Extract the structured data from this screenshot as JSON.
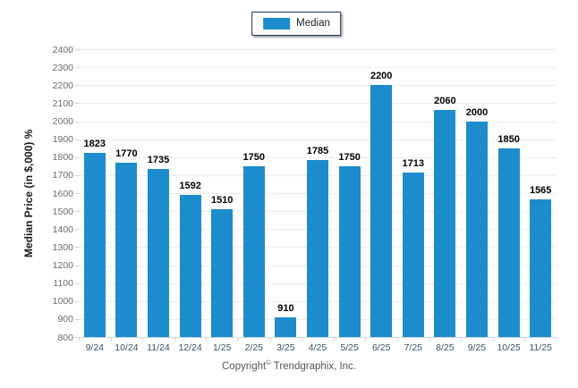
{
  "legend": {
    "swatch_color": "#1C8CCD",
    "border_color": "#17375E"
  },
  "footer": {
    "prefix": "Copyright",
    "symbol": "©",
    "suffix": "Trendgraphix, Inc."
  },
  "chart_data": {
    "type": "bar",
    "title": "",
    "xlabel": "",
    "ylabel": "Median Price (in $,000) %",
    "categories": [
      "9/24",
      "10/24",
      "11/24",
      "12/24",
      "1/25",
      "2/25",
      "3/25",
      "4/25",
      "5/25",
      "6/25",
      "7/25",
      "8/25",
      "9/25",
      "10/25",
      "11/25"
    ],
    "series": [
      {
        "name": "Median",
        "values": [
          1823,
          1770,
          1735,
          1592,
          1510,
          1750,
          910,
          1785,
          1750,
          2200,
          1713,
          2060,
          2000,
          1850,
          1565
        ],
        "color": "#1C8CCD"
      }
    ],
    "ylim": [
      800,
      2400
    ],
    "ytick_step": 100,
    "yticks": [
      800,
      900,
      1000,
      1100,
      1200,
      1300,
      1400,
      1500,
      1600,
      1700,
      1800,
      1900,
      2000,
      2100,
      2200,
      2300,
      2400
    ],
    "grid": true,
    "legend_position": "top-center",
    "value_labels": true
  }
}
